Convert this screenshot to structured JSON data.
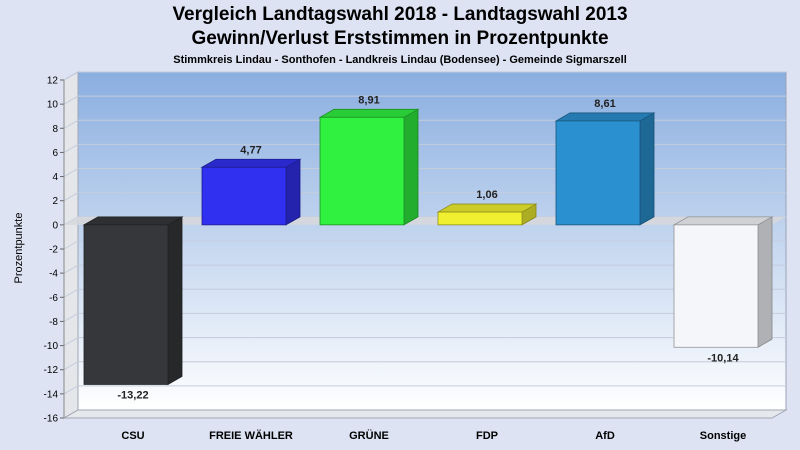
{
  "chart_data": {
    "type": "bar",
    "title": "Vergleich Landtagswahl 2018 - Landtagswahl 2013",
    "subtitle_line": "Gewinn/Verlust Erststimmen in Prozentpunkte",
    "subtitle": "Stimmkreis Lindau - Sonthofen - Landkreis Lindau (Bodensee) - Gemeinde Sigmarszell",
    "ylabel": "Prozentpunkte",
    "xlabel": "",
    "ylim": [
      -16,
      12
    ],
    "yticks": [
      12,
      10,
      8,
      6,
      4,
      2,
      0,
      -2,
      -4,
      -6,
      -8,
      -10,
      -12,
      -14,
      -16
    ],
    "grid": true,
    "categories": [
      "CSU",
      "FREIE WÄHLER",
      "GRÜNE",
      "FDP",
      "AfD",
      "Sonstige"
    ],
    "values": [
      -13.22,
      4.77,
      8.91,
      1.06,
      8.61,
      -10.14
    ],
    "value_labels": [
      "-13,22",
      "4,77",
      "8,91",
      "1,06",
      "8,61",
      "-10,14"
    ],
    "colors": [
      "#35373b",
      "#3030f0",
      "#30f040",
      "#f0f030",
      "#2a90d0",
      "#f4f6fa"
    ]
  }
}
